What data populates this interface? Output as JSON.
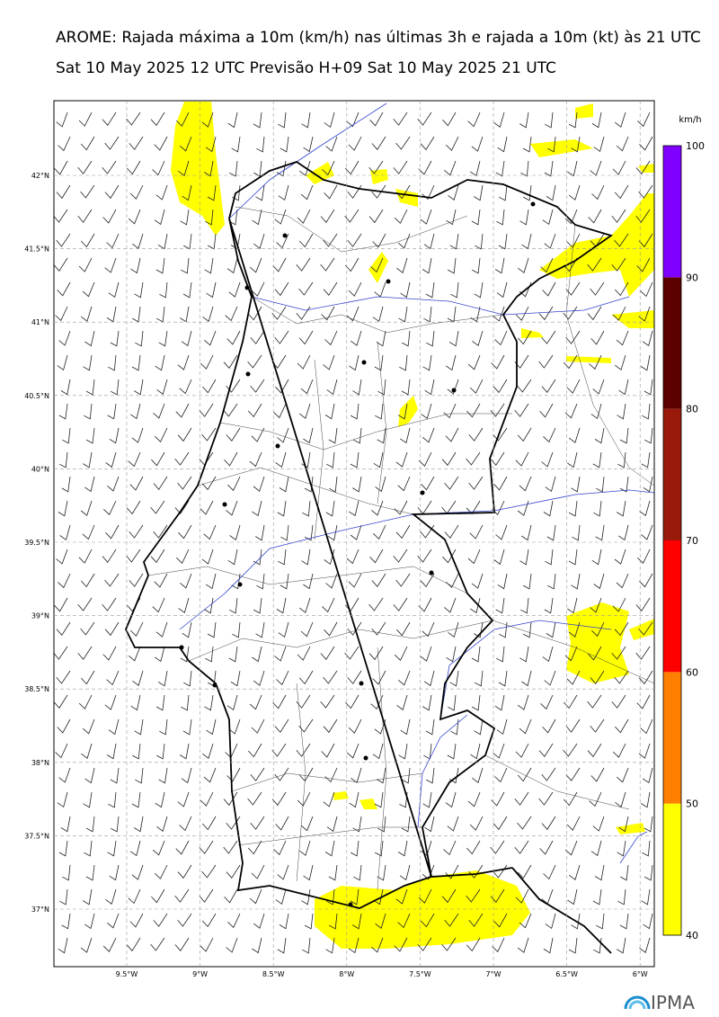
{
  "header": {
    "title": "AROME: Rajada máxima a 10m (km/h) nas últimas 3h e rajada a 10m (kt) às 21 UTC",
    "subtitle": "Sat 10 May 2025 12 UTC Previsão H+09 Sat 10 May 2025 21 UTC"
  },
  "map": {
    "lat_labels": [
      "42°N",
      "41.5°N",
      "41°N",
      "40.5°N",
      "40°N",
      "39.5°N",
      "39°N",
      "38.5°N",
      "38°N",
      "37.5°N",
      "37°N"
    ],
    "lon_labels": [
      "9.5°W",
      "9°W",
      "8.5°W",
      "8°W",
      "7.5°W",
      "7°W",
      "6.5°W",
      "6°W"
    ]
  },
  "colorbar": {
    "unit": "km/h",
    "levels": [
      40,
      50,
      60,
      70,
      80,
      90,
      100
    ],
    "colors": [
      "#ffff00",
      "#ff8000",
      "#ff0000",
      "#991a0a",
      "#5c0000",
      "#8000ff"
    ]
  },
  "logo": {
    "text": "IPMA"
  }
}
